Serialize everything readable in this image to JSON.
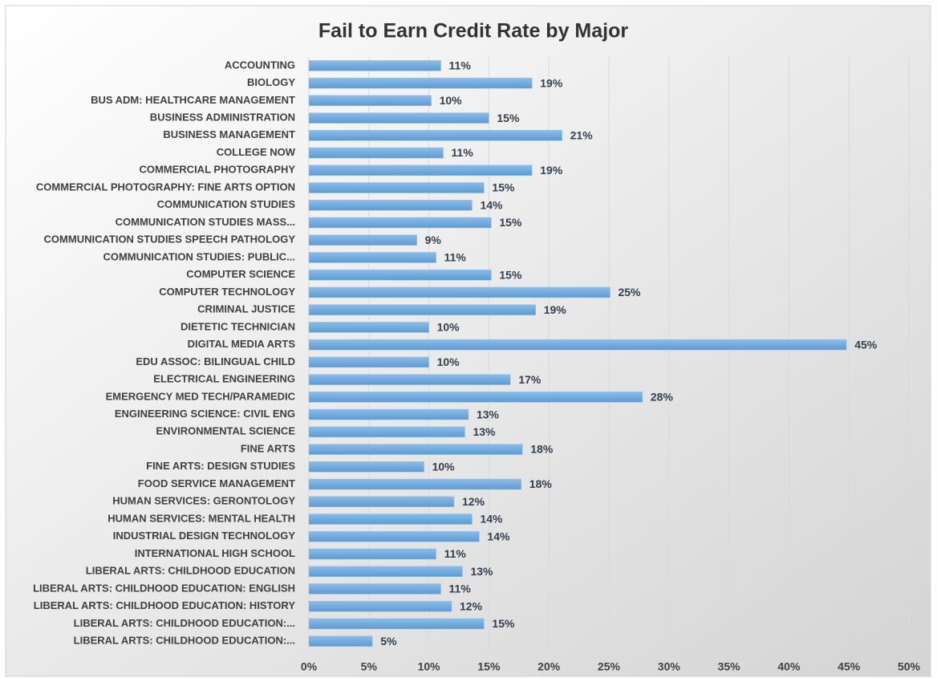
{
  "chart_data": {
    "type": "bar",
    "orientation": "horizontal",
    "title": "Fail to Earn Credit Rate by Major",
    "categories": [
      "ACCOUNTING",
      "BIOLOGY",
      "BUS ADM: HEALTHCARE MANAGEMENT",
      "BUSINESS ADMINISTRATION",
      "BUSINESS MANAGEMENT",
      "COLLEGE NOW",
      "COMMERCIAL PHOTOGRAPHY",
      "COMMERCIAL PHOTOGRAPHY: FINE ARTS OPTION",
      "COMMUNICATION STUDIES",
      "COMMUNICATION STUDIES MASS...",
      "COMMUNICATION STUDIES SPEECH PATHOLOGY",
      "COMMUNICATION STUDIES: PUBLIC...",
      "COMPUTER SCIENCE",
      "COMPUTER TECHNOLOGY",
      "CRIMINAL JUSTICE",
      "DIETETIC TECHNICIAN",
      "DIGITAL MEDIA ARTS",
      "EDU ASSOC: BILINGUAL CHILD",
      "ELECTRICAL ENGINEERING",
      "EMERGENCY MED TECH/PARAMEDIC",
      "ENGINEERING SCIENCE: CIVIL ENG",
      "ENVIRONMENTAL SCIENCE",
      "FINE ARTS",
      "FINE ARTS: DESIGN STUDIES",
      "FOOD SERVICE MANAGEMENT",
      "HUMAN SERVICES: GERONTOLOGY",
      "HUMAN SERVICES: MENTAL HEALTH",
      "INDUSTRIAL DESIGN TECHNOLOGY",
      "INTERNATIONAL HIGH SCHOOL",
      "LIBERAL ARTS: CHILDHOOD EDUCATION",
      "LIBERAL ARTS: CHILDHOOD EDUCATION: ENGLISH",
      "LIBERAL ARTS: CHILDHOOD EDUCATION: HISTORY",
      "LIBERAL ARTS: CHILDHOOD EDUCATION:...",
      "LIBERAL ARTS: CHILDHOOD EDUCATION:..."
    ],
    "values": [
      11.0,
      18.6,
      10.2,
      15.0,
      21.1,
      11.2,
      18.6,
      14.6,
      13.6,
      15.2,
      9.0,
      10.6,
      15.2,
      25.1,
      18.9,
      10.0,
      44.8,
      10.0,
      16.8,
      27.8,
      13.3,
      13.0,
      17.8,
      9.6,
      17.7,
      12.1,
      13.6,
      14.2,
      10.6,
      12.8,
      11.0,
      11.9,
      14.6,
      5.3
    ],
    "value_labels": [
      "11%",
      "19%",
      "10%",
      "15%",
      "21%",
      "11%",
      "19%",
      "15%",
      "14%",
      "15%",
      "9%",
      "11%",
      "15%",
      "25%",
      "19%",
      "10%",
      "45%",
      "10%",
      "17%",
      "28%",
      "13%",
      "13%",
      "18%",
      "10%",
      "18%",
      "12%",
      "14%",
      "14%",
      "11%",
      "13%",
      "11%",
      "12%",
      "15%",
      "5%"
    ],
    "color": "#6fa8dc",
    "xlim": [
      0,
      50
    ],
    "xticks": [
      {
        "value": 0,
        "label": "0%"
      },
      {
        "value": 5,
        "label": "5%"
      },
      {
        "value": 10,
        "label": "10%"
      },
      {
        "value": 15,
        "label": "15%"
      },
      {
        "value": 20,
        "label": "20%"
      },
      {
        "value": 25,
        "label": "25%"
      },
      {
        "value": 30,
        "label": "30%"
      },
      {
        "value": 35,
        "label": "35%"
      },
      {
        "value": 40,
        "label": "40%"
      },
      {
        "value": 45,
        "label": "45%"
      },
      {
        "value": 50,
        "label": "50%"
      }
    ],
    "grid": true
  }
}
